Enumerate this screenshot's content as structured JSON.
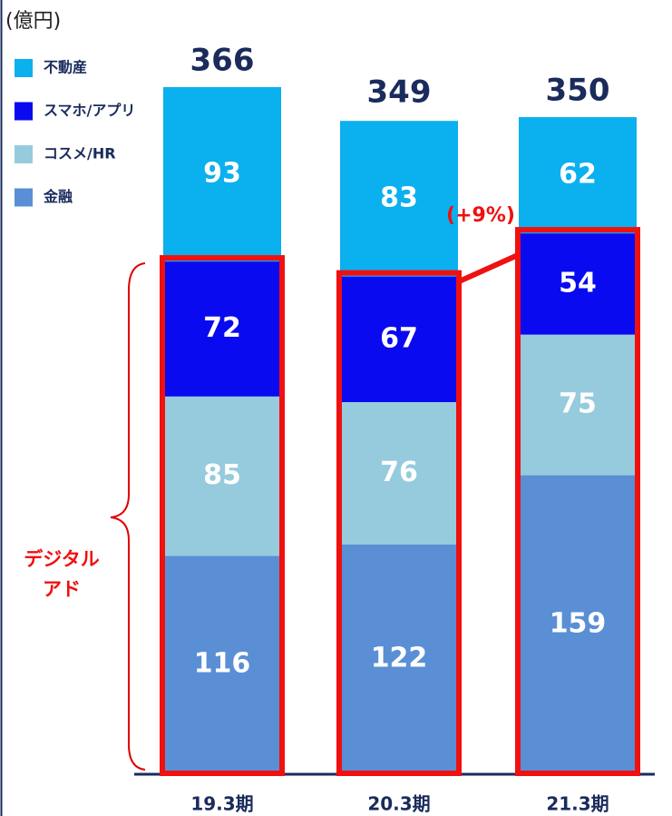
{
  "chart_data": {
    "type": "stacked_bar",
    "unit_label": "(億円)",
    "categories": [
      "19.3期",
      "20.3期",
      "21.3期"
    ],
    "series": [
      {
        "name": "金融",
        "color": "#5a8fd5",
        "values": [
          116,
          122,
          159
        ]
      },
      {
        "name": "コスメ/HR",
        "color": "#96cbdd",
        "values": [
          85,
          76,
          75
        ]
      },
      {
        "name": "スマホ/アプリ",
        "color": "#0a0af0",
        "values": [
          72,
          67,
          54
        ]
      },
      {
        "name": "不動産",
        "color": "#0bb0ee",
        "values": [
          93,
          83,
          62
        ]
      }
    ],
    "totals": [
      366,
      349,
      350
    ],
    "bracket_label": [
      "デジタル",
      "アド"
    ],
    "growth_label": "(+9%)"
  }
}
